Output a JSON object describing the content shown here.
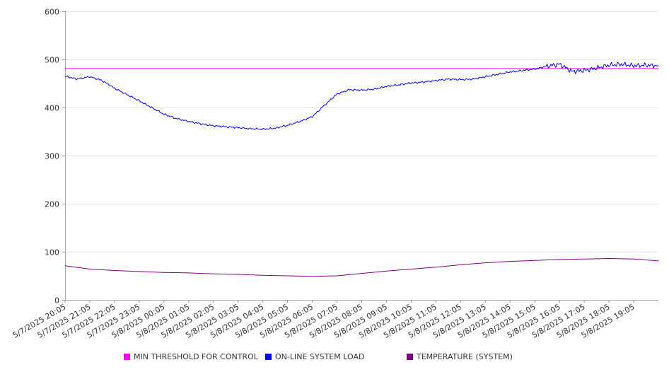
{
  "chart_data": {
    "type": "line",
    "ylim": [
      0,
      600
    ],
    "yticks": [
      0,
      100,
      200,
      300,
      400,
      500,
      600
    ],
    "x_start": "5/7/2025 20:05",
    "x_end": "5/8/2025 20:05",
    "xtick_labels": [
      "5/7/2025 20:05",
      "5/7/2025 21:05",
      "5/7/2025 22:05",
      "5/7/2025 23:05",
      "5/8/2025 00:05",
      "5/8/2025 01:05",
      "5/8/2025 02:05",
      "5/8/2025 03:05",
      "5/8/2025 04:05",
      "5/8/2025 05:05",
      "5/8/2025 06:05",
      "5/8/2025 07:05",
      "5/8/2025 08:05",
      "5/8/2025 09:05",
      "5/8/2025 10:05",
      "5/8/2025 11:05",
      "5/8/2025 12:05",
      "5/8/2025 13:05",
      "5/8/2025 14:05",
      "5/8/2025 15:05",
      "5/8/2025 16:05",
      "5/8/2025 17:05",
      "5/8/2025 18:05",
      "5/8/2025 19:05"
    ],
    "grid": true,
    "legend_position": "bottom",
    "series": [
      {
        "name": "MIN THRESHOLD FOR CONTROL",
        "color": "#ff00ff",
        "x": [
          "5/7/2025 20:05",
          "5/8/2025 20:05"
        ],
        "y": [
          481,
          481
        ]
      },
      {
        "name": "ON-LINE SYSTEM LOAD",
        "color": "#0000ff",
        "x": [
          "5/7/2025 20:05",
          "5/7/2025 20:35",
          "5/7/2025 21:05",
          "5/7/2025 21:35",
          "5/7/2025 22:05",
          "5/7/2025 22:35",
          "5/7/2025 23:05",
          "5/7/2025 23:35",
          "5/8/2025 00:05",
          "5/8/2025 00:35",
          "5/8/2025 01:05",
          "5/8/2025 01:35",
          "5/8/2025 02:05",
          "5/8/2025 02:35",
          "5/8/2025 03:05",
          "5/8/2025 03:35",
          "5/8/2025 04:05",
          "5/8/2025 04:35",
          "5/8/2025 05:05",
          "5/8/2025 05:35",
          "5/8/2025 06:05",
          "5/8/2025 06:35",
          "5/8/2025 07:05",
          "5/8/2025 07:35",
          "5/8/2025 08:05",
          "5/8/2025 08:35",
          "5/8/2025 09:05",
          "5/8/2025 09:35",
          "5/8/2025 10:05",
          "5/8/2025 10:35",
          "5/8/2025 11:05",
          "5/8/2025 11:35",
          "5/8/2025 12:05",
          "5/8/2025 12:35",
          "5/8/2025 13:05",
          "5/8/2025 13:35",
          "5/8/2025 14:05",
          "5/8/2025 14:35",
          "5/8/2025 15:05",
          "5/8/2025 15:35",
          "5/8/2025 16:05",
          "5/8/2025 16:35",
          "5/8/2025 17:05",
          "5/8/2025 17:35",
          "5/8/2025 18:05",
          "5/8/2025 18:35",
          "5/8/2025 19:05",
          "5/8/2025 19:35",
          "5/8/2025 20:05"
        ],
        "y": [
          465,
          459,
          464,
          456,
          440,
          427,
          414,
          400,
          386,
          377,
          371,
          366,
          362,
          360,
          358,
          356,
          355,
          357,
          363,
          371,
          381,
          405,
          428,
          437,
          436,
          438,
          444,
          447,
          451,
          453,
          456,
          459,
          458,
          459,
          464,
          469,
          474,
          477,
          480,
          486,
          490,
          475,
          477,
          482,
          488,
          490,
          487,
          488,
          487
        ]
      },
      {
        "name": "TEMPERATURE (SYSTEM)",
        "color": "#800080",
        "x": [
          "5/7/2025 20:05",
          "5/7/2025 21:05",
          "5/7/2025 22:05",
          "5/7/2025 23:05",
          "5/8/2025 00:05",
          "5/8/2025 01:05",
          "5/8/2025 02:05",
          "5/8/2025 03:05",
          "5/8/2025 04:05",
          "5/8/2025 05:05",
          "5/8/2025 06:05",
          "5/8/2025 07:05",
          "5/8/2025 08:05",
          "5/8/2025 09:05",
          "5/8/2025 10:05",
          "5/8/2025 11:05",
          "5/8/2025 12:05",
          "5/8/2025 13:05",
          "5/8/2025 14:05",
          "5/8/2025 15:05",
          "5/8/2025 16:05",
          "5/8/2025 17:05",
          "5/8/2025 18:05",
          "5/8/2025 19:05",
          "5/8/2025 20:05"
        ],
        "y": [
          71,
          64,
          61,
          59,
          57,
          56,
          54,
          53,
          51,
          50,
          49,
          50,
          55,
          60,
          64,
          68,
          73,
          77,
          80,
          82,
          84,
          85,
          86,
          85,
          81
        ]
      }
    ]
  }
}
